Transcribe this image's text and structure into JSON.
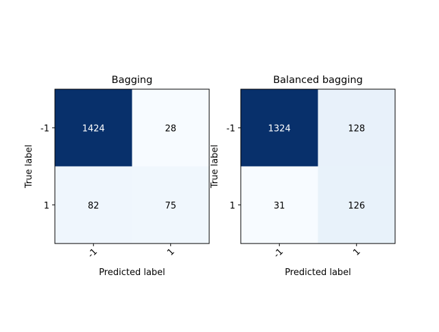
{
  "chart_data": [
    {
      "type": "heatmap",
      "title": "Bagging",
      "xlabel": "Predicted label",
      "ylabel": "True label",
      "x_categories": [
        "-1",
        "1"
      ],
      "y_categories": [
        "-1",
        "1"
      ],
      "values": [
        [
          1424,
          28
        ],
        [
          82,
          75
        ]
      ],
      "colormap": "Blues"
    },
    {
      "type": "heatmap",
      "title": "Balanced bagging",
      "xlabel": "Predicted label",
      "ylabel": "True label",
      "x_categories": [
        "-1",
        "1"
      ],
      "y_categories": [
        "-1",
        "1"
      ],
      "values": [
        [
          1324,
          128
        ],
        [
          31,
          126
        ]
      ],
      "colormap": "Blues"
    }
  ]
}
